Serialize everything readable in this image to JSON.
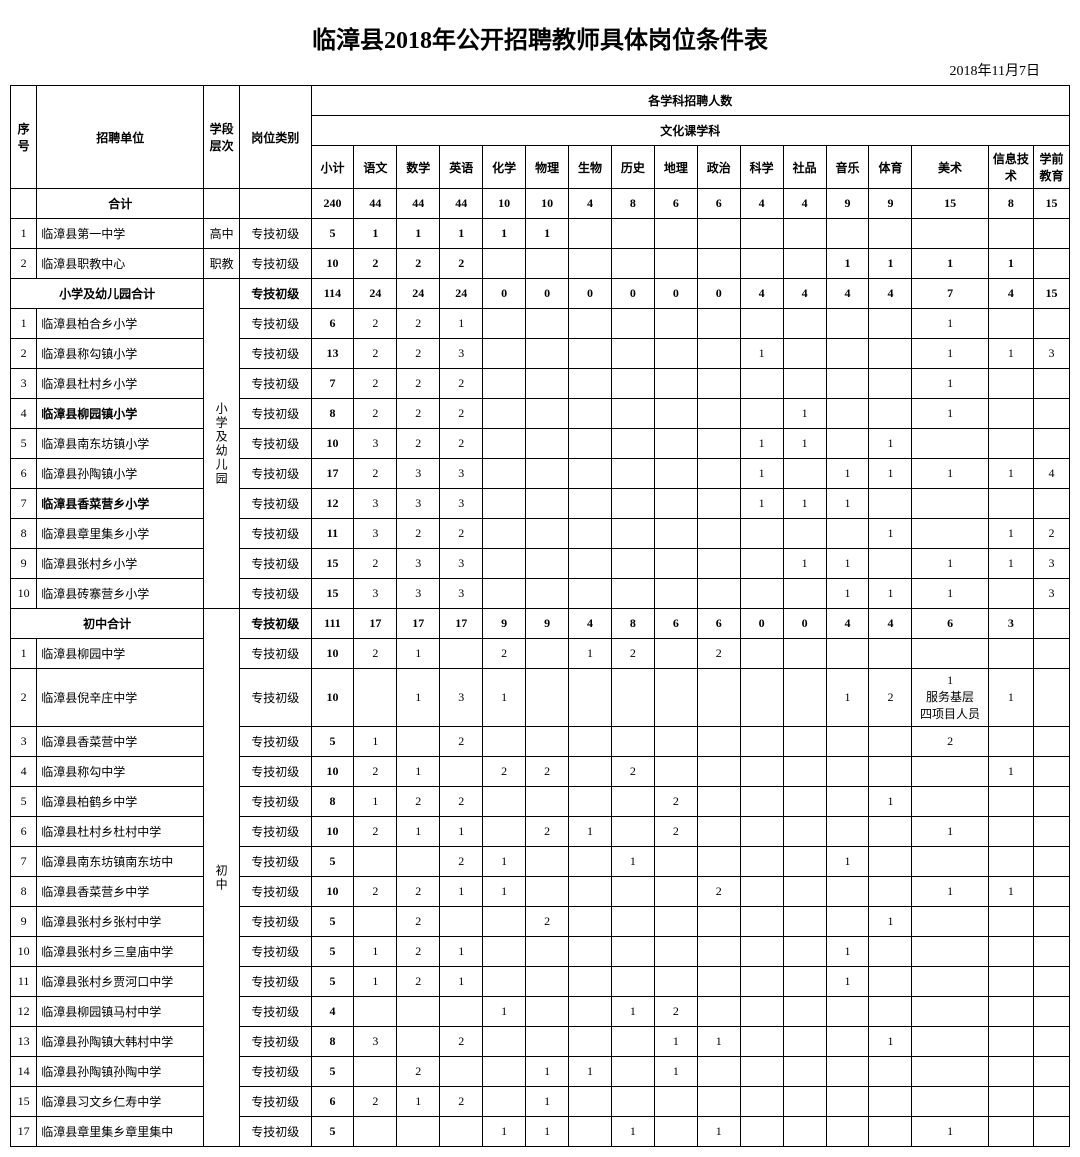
{
  "title": "临漳县2018年公开招聘教师具体岗位条件表",
  "date": "2018年11月7日",
  "headers": {
    "seq": "序号",
    "unit": "招聘单位",
    "level": "学段层次",
    "position": "岗位类别",
    "group_total": "各学科招聘人数",
    "group_culture": "文化课学科",
    "subtotal": "小计",
    "chinese": "语文",
    "math": "数学",
    "english": "英语",
    "chemistry": "化学",
    "physics": "物理",
    "biology": "生物",
    "history": "历史",
    "geography": "地理",
    "politics": "政治",
    "science": "科学",
    "social": "社品",
    "music": "音乐",
    "pe": "体育",
    "art": "美术",
    "it": "信息技术",
    "preschool": "学前教育"
  },
  "total_label": "合计",
  "primary_total_label": "小学及幼儿园合计",
  "middle_total_label": "初中合计",
  "pos_junior": "专技初级",
  "lvl_high": "高中",
  "lvl_voc": "职教",
  "lvl_primary": "小学及幼儿园",
  "lvl_middle": "初中",
  "total_row": [
    "",
    "240",
    "44",
    "44",
    "44",
    "10",
    "10",
    "4",
    "8",
    "6",
    "6",
    "4",
    "4",
    "9",
    "9",
    "15",
    "8",
    "15"
  ],
  "high_rows": [
    {
      "seq": "1",
      "unit": "临漳县第一中学",
      "pos": "专技初级",
      "v": [
        "5",
        "1",
        "1",
        "1",
        "1",
        "1",
        "",
        "",
        "",
        "",
        "",
        "",
        "",
        "",
        "",
        "",
        ""
      ]
    },
    {
      "seq": "2",
      "unit": "临漳县职教中心",
      "pos": "专技初级",
      "v": [
        "10",
        "2",
        "2",
        "2",
        "",
        "",
        "",
        "",
        "",
        "",
        "",
        "",
        "1",
        "1",
        "1",
        "1",
        ""
      ]
    }
  ],
  "primary_subtotal": {
    "pos": "专技初级",
    "v": [
      "114",
      "24",
      "24",
      "24",
      "0",
      "0",
      "0",
      "0",
      "0",
      "0",
      "4",
      "4",
      "4",
      "4",
      "7",
      "4",
      "15"
    ]
  },
  "primary_rows": [
    {
      "seq": "1",
      "unit": "临漳县柏合乡小学",
      "pos": "专技初级",
      "bold": false,
      "v": [
        "6",
        "2",
        "2",
        "1",
        "",
        "",
        "",
        "",
        "",
        "",
        "",
        "",
        "",
        "",
        "1",
        "",
        ""
      ]
    },
    {
      "seq": "2",
      "unit": "临漳县称勾镇小学",
      "pos": "专技初级",
      "bold": false,
      "v": [
        "13",
        "2",
        "2",
        "3",
        "",
        "",
        "",
        "",
        "",
        "",
        "1",
        "",
        "",
        "",
        "1",
        "1",
        "3"
      ]
    },
    {
      "seq": "3",
      "unit": "临漳县杜村乡小学",
      "pos": "专技初级",
      "bold": false,
      "v": [
        "7",
        "2",
        "2",
        "2",
        "",
        "",
        "",
        "",
        "",
        "",
        "",
        "",
        "",
        "",
        "1",
        "",
        ""
      ]
    },
    {
      "seq": "4",
      "unit": "临漳县柳园镇小学",
      "pos": "专技初级",
      "bold": true,
      "v": [
        "8",
        "2",
        "2",
        "2",
        "",
        "",
        "",
        "",
        "",
        "",
        "",
        "1",
        "",
        "",
        "1",
        "",
        ""
      ]
    },
    {
      "seq": "5",
      "unit": "临漳县南东坊镇小学",
      "pos": "专技初级",
      "bold": false,
      "v": [
        "10",
        "3",
        "2",
        "2",
        "",
        "",
        "",
        "",
        "",
        "",
        "1",
        "1",
        "",
        "1",
        "",
        "",
        ""
      ]
    },
    {
      "seq": "6",
      "unit": "临漳县孙陶镇小学",
      "pos": "专技初级",
      "bold": false,
      "v": [
        "17",
        "2",
        "3",
        "3",
        "",
        "",
        "",
        "",
        "",
        "",
        "1",
        "",
        "1",
        "1",
        "1",
        "1",
        "4"
      ]
    },
    {
      "seq": "7",
      "unit": "临漳县香菜营乡小学",
      "pos": "专技初级",
      "bold": true,
      "v": [
        "12",
        "3",
        "3",
        "3",
        "",
        "",
        "",
        "",
        "",
        "",
        "1",
        "1",
        "1",
        "",
        "",
        "",
        ""
      ]
    },
    {
      "seq": "8",
      "unit": "临漳县章里集乡小学",
      "pos": "专技初级",
      "bold": false,
      "v": [
        "11",
        "3",
        "2",
        "2",
        "",
        "",
        "",
        "",
        "",
        "",
        "",
        "",
        "",
        "1",
        "",
        "1",
        "2"
      ]
    },
    {
      "seq": "9",
      "unit": "临漳县张村乡小学",
      "pos": "专技初级",
      "bold": false,
      "v": [
        "15",
        "2",
        "3",
        "3",
        "",
        "",
        "",
        "",
        "",
        "",
        "",
        "1",
        "1",
        "",
        "1",
        "1",
        "3"
      ]
    },
    {
      "seq": "10",
      "unit": "临漳县砖寨营乡小学",
      "pos": "专技初级",
      "bold": false,
      "v": [
        "15",
        "3",
        "3",
        "3",
        "",
        "",
        "",
        "",
        "",
        "",
        "",
        "",
        "1",
        "1",
        "1",
        "",
        "3"
      ]
    }
  ],
  "middle_subtotal": {
    "pos": "专技初级",
    "v": [
      "111",
      "17",
      "17",
      "17",
      "9",
      "9",
      "4",
      "8",
      "6",
      "6",
      "0",
      "0",
      "4",
      "4",
      "6",
      "3",
      ""
    ]
  },
  "middle_rows": [
    {
      "seq": "1",
      "unit": "临漳县柳园中学",
      "pos": "专技初级",
      "v": [
        "10",
        "2",
        "1",
        "",
        "2",
        "",
        "1",
        "2",
        "",
        "2",
        "",
        "",
        "",
        "",
        "",
        "",
        ""
      ]
    },
    {
      "seq": "2",
      "unit": "临漳县倪辛庄中学",
      "pos": "专技初级",
      "v": [
        "10",
        "",
        "1",
        "3",
        "1",
        "",
        "",
        "",
        "",
        "",
        "",
        "",
        "1",
        "2",
        "1\n服务基层\n四项目人员",
        "1",
        ""
      ],
      "tall": true
    },
    {
      "seq": "3",
      "unit": "临漳县香菜营中学",
      "pos": "专技初级",
      "v": [
        "5",
        "1",
        "",
        "2",
        "",
        "",
        "",
        "",
        "",
        "",
        "",
        "",
        "",
        "",
        "2",
        "",
        ""
      ]
    },
    {
      "seq": "4",
      "unit": "临漳县称勾中学",
      "pos": "专技初级",
      "v": [
        "10",
        "2",
        "1",
        "",
        "2",
        "2",
        "",
        "2",
        "",
        "",
        "",
        "",
        "",
        "",
        "",
        "1",
        ""
      ]
    },
    {
      "seq": "5",
      "unit": "临漳县柏鹤乡中学",
      "pos": "专技初级",
      "v": [
        "8",
        "1",
        "2",
        "2",
        "",
        "",
        "",
        "",
        "2",
        "",
        "",
        "",
        "",
        "1",
        "",
        "",
        ""
      ]
    },
    {
      "seq": "6",
      "unit": "临漳县杜村乡杜村中学",
      "pos": "专技初级",
      "v": [
        "10",
        "2",
        "1",
        "1",
        "",
        "2",
        "1",
        "",
        "2",
        "",
        "",
        "",
        "",
        "",
        "1",
        "",
        ""
      ]
    },
    {
      "seq": "7",
      "unit": "临漳县南东坊镇南东坊中",
      "pos": "专技初级",
      "v": [
        "5",
        "",
        "",
        "2",
        "1",
        "",
        "",
        "1",
        "",
        "",
        "",
        "",
        "1",
        "",
        "",
        "",
        ""
      ]
    },
    {
      "seq": "8",
      "unit": "临漳县香菜营乡中学",
      "pos": "专技初级",
      "v": [
        "10",
        "2",
        "2",
        "1",
        "1",
        "",
        "",
        "",
        "",
        "2",
        "",
        "",
        "",
        "",
        "1",
        "1",
        ""
      ]
    },
    {
      "seq": "9",
      "unit": "临漳县张村乡张村中学",
      "pos": "专技初级",
      "v": [
        "5",
        "",
        "2",
        "",
        "",
        "2",
        "",
        "",
        "",
        "",
        "",
        "",
        "",
        "1",
        "",
        "",
        ""
      ]
    },
    {
      "seq": "10",
      "unit": "临漳县张村乡三皇庙中学",
      "pos": "专技初级",
      "v": [
        "5",
        "1",
        "2",
        "1",
        "",
        "",
        "",
        "",
        "",
        "",
        "",
        "",
        "1",
        "",
        "",
        "",
        ""
      ]
    },
    {
      "seq": "11",
      "unit": "临漳县张村乡贾河口中学",
      "pos": "专技初级",
      "v": [
        "5",
        "1",
        "2",
        "1",
        "",
        "",
        "",
        "",
        "",
        "",
        "",
        "",
        "1",
        "",
        "",
        "",
        ""
      ]
    },
    {
      "seq": "12",
      "unit": "临漳县柳园镇马村中学",
      "pos": "专技初级",
      "v": [
        "4",
        "",
        "",
        "",
        "1",
        "",
        "",
        "1",
        "2",
        "",
        "",
        "",
        "",
        "",
        "",
        "",
        ""
      ]
    },
    {
      "seq": "13",
      "unit": "临漳县孙陶镇大韩村中学",
      "pos": "专技初级",
      "v": [
        "8",
        "3",
        "",
        "2",
        "",
        "",
        "",
        "",
        "1",
        "1",
        "",
        "",
        "",
        "1",
        "",
        "",
        ""
      ]
    },
    {
      "seq": "14",
      "unit": "临漳县孙陶镇孙陶中学",
      "pos": "专技初级",
      "v": [
        "5",
        "",
        "2",
        "",
        "",
        "1",
        "1",
        "",
        "1",
        "",
        "",
        "",
        "",
        "",
        "",
        "",
        ""
      ]
    },
    {
      "seq": "15",
      "unit": "临漳县习文乡仁寿中学",
      "pos": "专技初级",
      "v": [
        "6",
        "2",
        "1",
        "2",
        "",
        "1",
        "",
        "",
        "",
        "",
        "",
        "",
        "",
        "",
        "",
        "",
        ""
      ]
    },
    {
      "seq": "17",
      "unit": "临漳县章里集乡章里集中",
      "pos": "专技初级",
      "v": [
        "5",
        "",
        "",
        "",
        "1",
        "1",
        "",
        "1",
        "",
        "1",
        "",
        "",
        "",
        "",
        "1",
        "",
        ""
      ]
    }
  ]
}
